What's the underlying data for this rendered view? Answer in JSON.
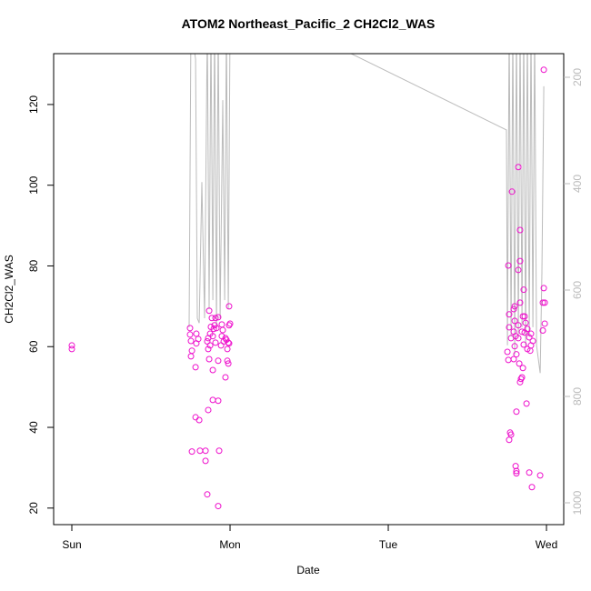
{
  "chart_data": {
    "type": "scatter",
    "title": "ATOM2 Northeast_Pacific_2 CH2Cl2_WAS",
    "x_label": "Date",
    "y_label": "CH2Cl2_WAS",
    "xlim": [
      -0.115,
      3.109
    ],
    "ylim": [
      15.9,
      132.6
    ],
    "y2lim": [
      1041,
      155.6
    ],
    "xticks": [
      {
        "value": 0,
        "label": "Sun"
      },
      {
        "value": 1,
        "label": "Mon"
      },
      {
        "value": 2,
        "label": "Tue"
      },
      {
        "value": 3,
        "label": "Wed"
      }
    ],
    "yticks": [
      20,
      40,
      60,
      80,
      100,
      120
    ],
    "y2ticks": [
      200,
      400,
      600,
      800,
      1000
    ],
    "points": {
      "color": "#ee11cc",
      "x": [
        0,
        0,
        0.747,
        0.747,
        0.753,
        0.759,
        0.753,
        0.787,
        0.787,
        0.799,
        0.782,
        0.782,
        0.805,
        0.759,
        0.81,
        0.845,
        0.845,
        0.856,
        0.925,
        0.931,
        0.891,
        0.925,
        0.862,
        0.868,
        0.925,
        0.891,
        0.971,
        0.983,
        0.989,
        0.994,
        0.983,
        0.994,
        1.0,
        0.868,
        0.885,
        0.908,
        0.925,
        0.948,
        0.954,
        0.879,
        0.897,
        0.914,
        0.902,
        0.874,
        0.862,
        0.891,
        0.948,
        0.971,
        0.874,
        0.856,
        0.908,
        0.96,
        0.977,
        0.994,
        0.943,
        0.862,
        0.989,
        2.759,
        2.782,
        2.822,
        2.833,
        2.833,
        2.822,
        2.856,
        2.983,
        2.983,
        2.977,
        2.989,
        2.989,
        2.977,
        2.799,
        2.833,
        2.862,
        2.793,
        2.764,
        2.764,
        2.753,
        2.759,
        2.77,
        2.764,
        2.776,
        2.805,
        2.81,
        2.81,
        2.891,
        2.908,
        2.96,
        2.874,
        2.81,
        2.839,
        2.833,
        2.845,
        2.851,
        2.81,
        2.793,
        2.828,
        2.793,
        2.805,
        2.822,
        2.845,
        2.862,
        2.868,
        2.879,
        2.891,
        2.902,
        2.914,
        2.856,
        2.879,
        2.897,
        2.902,
        2.799,
        2.776,
        2.822,
        2.851,
        2.799
      ],
      "values": [
        60.3,
        59.4,
        64.6,
        63.0,
        61.4,
        59.0,
        57.6,
        63.2,
        60.8,
        61.9,
        54.9,
        42.5,
        41.8,
        34.0,
        34.2,
        34.2,
        31.7,
        23.4,
        20.5,
        34.2,
        46.8,
        46.6,
        44.3,
        56.9,
        56.5,
        54.2,
        52.4,
        56.5,
        55.8,
        70.0,
        59.4,
        65.3,
        65.7,
        68.9,
        67.1,
        67.1,
        67.3,
        65.5,
        64.1,
        64.9,
        64.4,
        64.6,
        65.3,
        63.2,
        62.1,
        62.6,
        62.6,
        62.1,
        60.3,
        61.3,
        61.0,
        61.3,
        61.7,
        60.8,
        60.3,
        59.4,
        61.0,
        80.1,
        98.4,
        104.5,
        88.9,
        81.2,
        79.0,
        74.1,
        128.6,
        74.5,
        70.9,
        70.9,
        65.7,
        64.0,
        70.0,
        70.9,
        67.5,
        69.3,
        68.0,
        64.8,
        58.7,
        56.7,
        38.7,
        36.9,
        38.2,
        30.4,
        29.2,
        28.6,
        28.8,
        25.2,
        28.1,
        45.9,
        43.9,
        52.0,
        51.2,
        52.4,
        54.7,
        58.1,
        56.9,
        55.8,
        63.7,
        62.6,
        62.1,
        63.7,
        63.5,
        65.9,
        64.4,
        62.3,
        63.2,
        61.4,
        60.5,
        59.4,
        59.0,
        60.3,
        60.1,
        62.1,
        65.3,
        67.5,
        66.4
      ]
    },
    "pressure": {
      "color": "#bbbbbb",
      "axis": "y2",
      "x": [
        0.741,
        0.753,
        0.782,
        0.793,
        0.805,
        0.822,
        0.839,
        0.856,
        0.868,
        0.879,
        0.891,
        0.902,
        0.914,
        0.925,
        0.937,
        0.954,
        0.966,
        0.977,
        0.989,
        1.0,
        1.011,
        1.385,
        2.747,
        2.753,
        2.764,
        2.776,
        2.787,
        2.799,
        2.81,
        2.822,
        2.833,
        2.845,
        2.856,
        2.868,
        2.879,
        2.891,
        2.902,
        2.914,
        2.925,
        2.937,
        2.96,
        2.971,
        2.983
      ],
      "values": [
        670,
        100,
        166,
        653,
        662,
        397,
        653,
        100,
        636,
        100,
        619,
        100,
        670,
        100,
        653,
        243,
        619,
        100,
        636,
        100,
        100,
        100,
        299,
        704,
        100,
        687,
        100,
        721,
        100,
        687,
        100,
        670,
        100,
        704,
        100,
        687,
        100,
        670,
        100,
        704,
        756,
        568,
        217
      ]
    }
  }
}
